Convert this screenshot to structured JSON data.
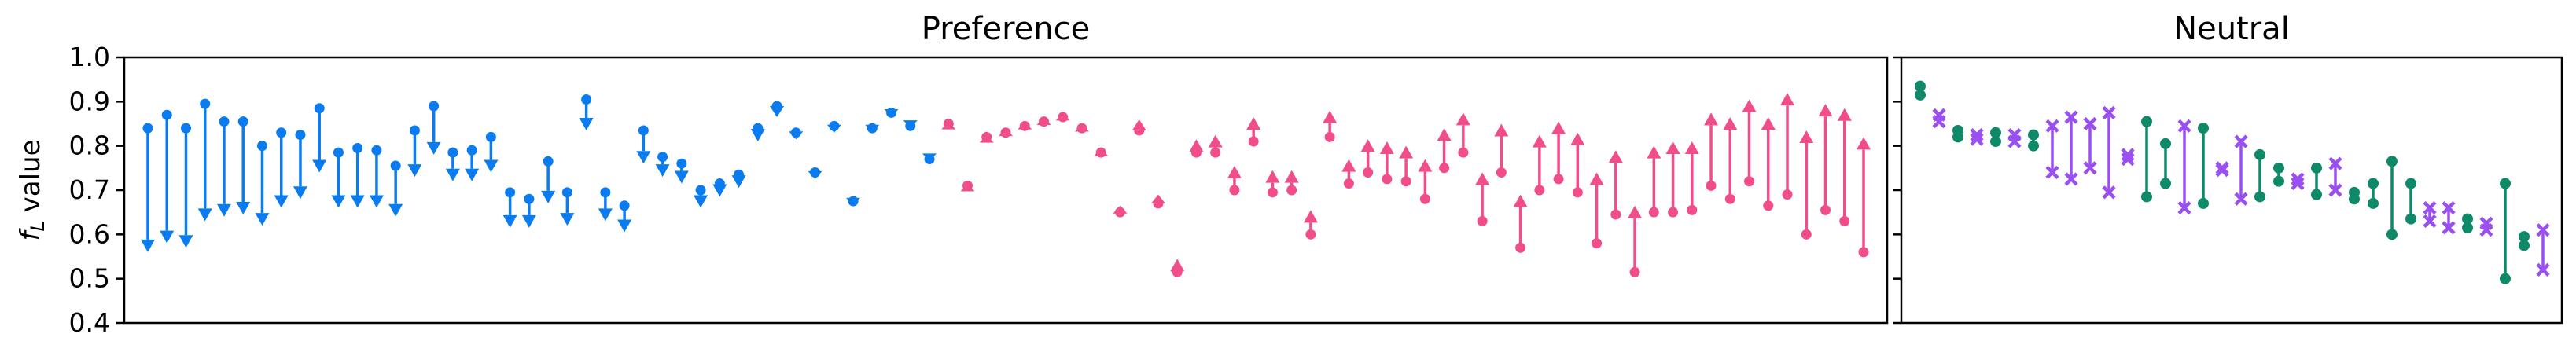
{
  "colors": {
    "pref_down": "#0a7cf0",
    "pref_up": "#f04d8a",
    "neutral_green": "#0e8a69",
    "neutral_purple": "#9a4ff0"
  },
  "y_axis": {
    "label_main": "f",
    "label_sub": "L",
    "label_suffix": " value",
    "ylim": [
      0.4,
      1.0
    ],
    "ticks": [
      "0.4",
      "0.5",
      "0.6",
      "0.7",
      "0.8",
      "0.9",
      "1.0"
    ]
  },
  "chart_data": [
    {
      "type": "scatter",
      "title": "Preference",
      "ylim": [
        0.4,
        1.0
      ],
      "grid": false,
      "segments": [
        {
          "start": 0.84,
          "end": 0.56,
          "dir": "down"
        },
        {
          "start": 0.87,
          "end": 0.58,
          "dir": "down"
        },
        {
          "start": 0.84,
          "end": 0.57,
          "dir": "down"
        },
        {
          "start": 0.895,
          "end": 0.63,
          "dir": "down"
        },
        {
          "start": 0.855,
          "end": 0.64,
          "dir": "down"
        },
        {
          "start": 0.855,
          "end": 0.645,
          "dir": "down"
        },
        {
          "start": 0.8,
          "end": 0.62,
          "dir": "down"
        },
        {
          "start": 0.83,
          "end": 0.66,
          "dir": "down"
        },
        {
          "start": 0.825,
          "end": 0.68,
          "dir": "down"
        },
        {
          "start": 0.885,
          "end": 0.74,
          "dir": "down"
        },
        {
          "start": 0.785,
          "end": 0.66,
          "dir": "down"
        },
        {
          "start": 0.795,
          "end": 0.66,
          "dir": "down"
        },
        {
          "start": 0.79,
          "end": 0.66,
          "dir": "down"
        },
        {
          "start": 0.755,
          "end": 0.64,
          "dir": "down"
        },
        {
          "start": 0.835,
          "end": 0.73,
          "dir": "down"
        },
        {
          "start": 0.89,
          "end": 0.78,
          "dir": "down"
        },
        {
          "start": 0.785,
          "end": 0.72,
          "dir": "down"
        },
        {
          "start": 0.79,
          "end": 0.72,
          "dir": "down"
        },
        {
          "start": 0.82,
          "end": 0.74,
          "dir": "down"
        },
        {
          "start": 0.695,
          "end": 0.615,
          "dir": "down"
        },
        {
          "start": 0.68,
          "end": 0.615,
          "dir": "down"
        },
        {
          "start": 0.765,
          "end": 0.67,
          "dir": "down"
        },
        {
          "start": 0.695,
          "end": 0.62,
          "dir": "down"
        },
        {
          "start": 0.905,
          "end": 0.835,
          "dir": "down"
        },
        {
          "start": 0.695,
          "end": 0.63,
          "dir": "down"
        },
        {
          "start": 0.665,
          "end": 0.605,
          "dir": "down"
        },
        {
          "start": 0.835,
          "end": 0.76,
          "dir": "down"
        },
        {
          "start": 0.775,
          "end": 0.73,
          "dir": "down"
        },
        {
          "start": 0.76,
          "end": 0.715,
          "dir": "down"
        },
        {
          "start": 0.7,
          "end": 0.66,
          "dir": "down"
        },
        {
          "start": 0.715,
          "end": 0.685,
          "dir": "down"
        },
        {
          "start": 0.735,
          "end": 0.705,
          "dir": "down"
        },
        {
          "start": 0.84,
          "end": 0.81,
          "dir": "down"
        },
        {
          "start": 0.89,
          "end": 0.865,
          "dir": "down"
        },
        {
          "start": 0.83,
          "end": 0.815,
          "dir": "down"
        },
        {
          "start": 0.74,
          "end": 0.725,
          "dir": "down"
        },
        {
          "start": 0.845,
          "end": 0.83,
          "dir": "down"
        },
        {
          "start": 0.675,
          "end": 0.665,
          "dir": "down"
        },
        {
          "start": 0.84,
          "end": 0.83,
          "dir": "down"
        },
        {
          "start": 0.875,
          "end": 0.865,
          "dir": "down"
        },
        {
          "start": 0.845,
          "end": 0.84,
          "dir": "down"
        },
        {
          "start": 0.77,
          "end": 0.765,
          "dir": "down"
        },
        {
          "start": 0.85,
          "end": 0.855,
          "dir": "up"
        },
        {
          "start": 0.71,
          "end": 0.715,
          "dir": "up"
        },
        {
          "start": 0.82,
          "end": 0.825,
          "dir": "up"
        },
        {
          "start": 0.83,
          "end": 0.84,
          "dir": "up"
        },
        {
          "start": 0.845,
          "end": 0.855,
          "dir": "up"
        },
        {
          "start": 0.855,
          "end": 0.865,
          "dir": "up"
        },
        {
          "start": 0.865,
          "end": 0.875,
          "dir": "up"
        },
        {
          "start": 0.84,
          "end": 0.85,
          "dir": "up"
        },
        {
          "start": 0.785,
          "end": 0.795,
          "dir": "up"
        },
        {
          "start": 0.65,
          "end": 0.665,
          "dir": "up"
        },
        {
          "start": 0.835,
          "end": 0.86,
          "dir": "up"
        },
        {
          "start": 0.67,
          "end": 0.69,
          "dir": "up"
        },
        {
          "start": 0.515,
          "end": 0.545,
          "dir": "up"
        },
        {
          "start": 0.785,
          "end": 0.815,
          "dir": "up"
        },
        {
          "start": 0.785,
          "end": 0.825,
          "dir": "up"
        },
        {
          "start": 0.7,
          "end": 0.755,
          "dir": "up"
        },
        {
          "start": 0.81,
          "end": 0.865,
          "dir": "up"
        },
        {
          "start": 0.695,
          "end": 0.745,
          "dir": "up"
        },
        {
          "start": 0.7,
          "end": 0.745,
          "dir": "up"
        },
        {
          "start": 0.6,
          "end": 0.655,
          "dir": "up"
        },
        {
          "start": 0.82,
          "end": 0.88,
          "dir": "up"
        },
        {
          "start": 0.715,
          "end": 0.77,
          "dir": "up"
        },
        {
          "start": 0.74,
          "end": 0.815,
          "dir": "up"
        },
        {
          "start": 0.725,
          "end": 0.81,
          "dir": "up"
        },
        {
          "start": 0.72,
          "end": 0.8,
          "dir": "up"
        },
        {
          "start": 0.68,
          "end": 0.77,
          "dir": "up"
        },
        {
          "start": 0.75,
          "end": 0.84,
          "dir": "up"
        },
        {
          "start": 0.785,
          "end": 0.875,
          "dir": "up"
        },
        {
          "start": 0.63,
          "end": 0.74,
          "dir": "up"
        },
        {
          "start": 0.74,
          "end": 0.85,
          "dir": "up"
        },
        {
          "start": 0.57,
          "end": 0.69,
          "dir": "up"
        },
        {
          "start": 0.7,
          "end": 0.825,
          "dir": "up"
        },
        {
          "start": 0.725,
          "end": 0.855,
          "dir": "up"
        },
        {
          "start": 0.695,
          "end": 0.83,
          "dir": "up"
        },
        {
          "start": 0.58,
          "end": 0.74,
          "dir": "up"
        },
        {
          "start": 0.645,
          "end": 0.79,
          "dir": "up"
        },
        {
          "start": 0.515,
          "end": 0.665,
          "dir": "up"
        },
        {
          "start": 0.65,
          "end": 0.8,
          "dir": "up"
        },
        {
          "start": 0.65,
          "end": 0.81,
          "dir": "up"
        },
        {
          "start": 0.655,
          "end": 0.81,
          "dir": "up"
        },
        {
          "start": 0.71,
          "end": 0.875,
          "dir": "up"
        },
        {
          "start": 0.68,
          "end": 0.865,
          "dir": "up"
        },
        {
          "start": 0.72,
          "end": 0.905,
          "dir": "up"
        },
        {
          "start": 0.665,
          "end": 0.865,
          "dir": "up"
        },
        {
          "start": 0.69,
          "end": 0.92,
          "dir": "up"
        },
        {
          "start": 0.6,
          "end": 0.835,
          "dir": "up"
        },
        {
          "start": 0.655,
          "end": 0.895,
          "dir": "up"
        },
        {
          "start": 0.63,
          "end": 0.885,
          "dir": "up"
        },
        {
          "start": 0.56,
          "end": 0.82,
          "dir": "up"
        }
      ]
    },
    {
      "type": "scatter",
      "title": "Neutral",
      "ylim": [
        0.4,
        1.0
      ],
      "grid": false,
      "segments": [
        {
          "low": 0.915,
          "high": 0.935,
          "marker": "dot"
        },
        {
          "low": 0.855,
          "high": 0.87,
          "marker": "x"
        },
        {
          "low": 0.82,
          "high": 0.835,
          "marker": "dot"
        },
        {
          "low": 0.815,
          "high": 0.825,
          "marker": "x"
        },
        {
          "low": 0.81,
          "high": 0.83,
          "marker": "dot"
        },
        {
          "low": 0.81,
          "high": 0.825,
          "marker": "x"
        },
        {
          "low": 0.8,
          "high": 0.825,
          "marker": "dot"
        },
        {
          "low": 0.74,
          "high": 0.845,
          "marker": "x"
        },
        {
          "low": 0.725,
          "high": 0.865,
          "marker": "x"
        },
        {
          "low": 0.75,
          "high": 0.85,
          "marker": "x"
        },
        {
          "low": 0.695,
          "high": 0.875,
          "marker": "x"
        },
        {
          "low": 0.77,
          "high": 0.78,
          "marker": "x"
        },
        {
          "low": 0.685,
          "high": 0.855,
          "marker": "dot"
        },
        {
          "low": 0.715,
          "high": 0.805,
          "marker": "dot"
        },
        {
          "low": 0.66,
          "high": 0.845,
          "marker": "x"
        },
        {
          "low": 0.67,
          "high": 0.84,
          "marker": "dot"
        },
        {
          "low": 0.745,
          "high": 0.75,
          "marker": "x"
        },
        {
          "low": 0.68,
          "high": 0.81,
          "marker": "x"
        },
        {
          "low": 0.685,
          "high": 0.78,
          "marker": "dot"
        },
        {
          "low": 0.72,
          "high": 0.75,
          "marker": "dot"
        },
        {
          "low": 0.715,
          "high": 0.725,
          "marker": "x"
        },
        {
          "low": 0.69,
          "high": 0.75,
          "marker": "dot"
        },
        {
          "low": 0.7,
          "high": 0.76,
          "marker": "x"
        },
        {
          "low": 0.68,
          "high": 0.695,
          "marker": "dot"
        },
        {
          "low": 0.67,
          "high": 0.715,
          "marker": "dot"
        },
        {
          "low": 0.6,
          "high": 0.765,
          "marker": "dot"
        },
        {
          "low": 0.635,
          "high": 0.715,
          "marker": "dot"
        },
        {
          "low": 0.63,
          "high": 0.66,
          "marker": "x"
        },
        {
          "low": 0.615,
          "high": 0.66,
          "marker": "x"
        },
        {
          "low": 0.615,
          "high": 0.635,
          "marker": "dot"
        },
        {
          "low": 0.61,
          "high": 0.625,
          "marker": "x"
        },
        {
          "low": 0.5,
          "high": 0.715,
          "marker": "dot"
        },
        {
          "low": 0.575,
          "high": 0.595,
          "marker": "dot"
        },
        {
          "low": 0.52,
          "high": 0.61,
          "marker": "x"
        }
      ]
    }
  ]
}
